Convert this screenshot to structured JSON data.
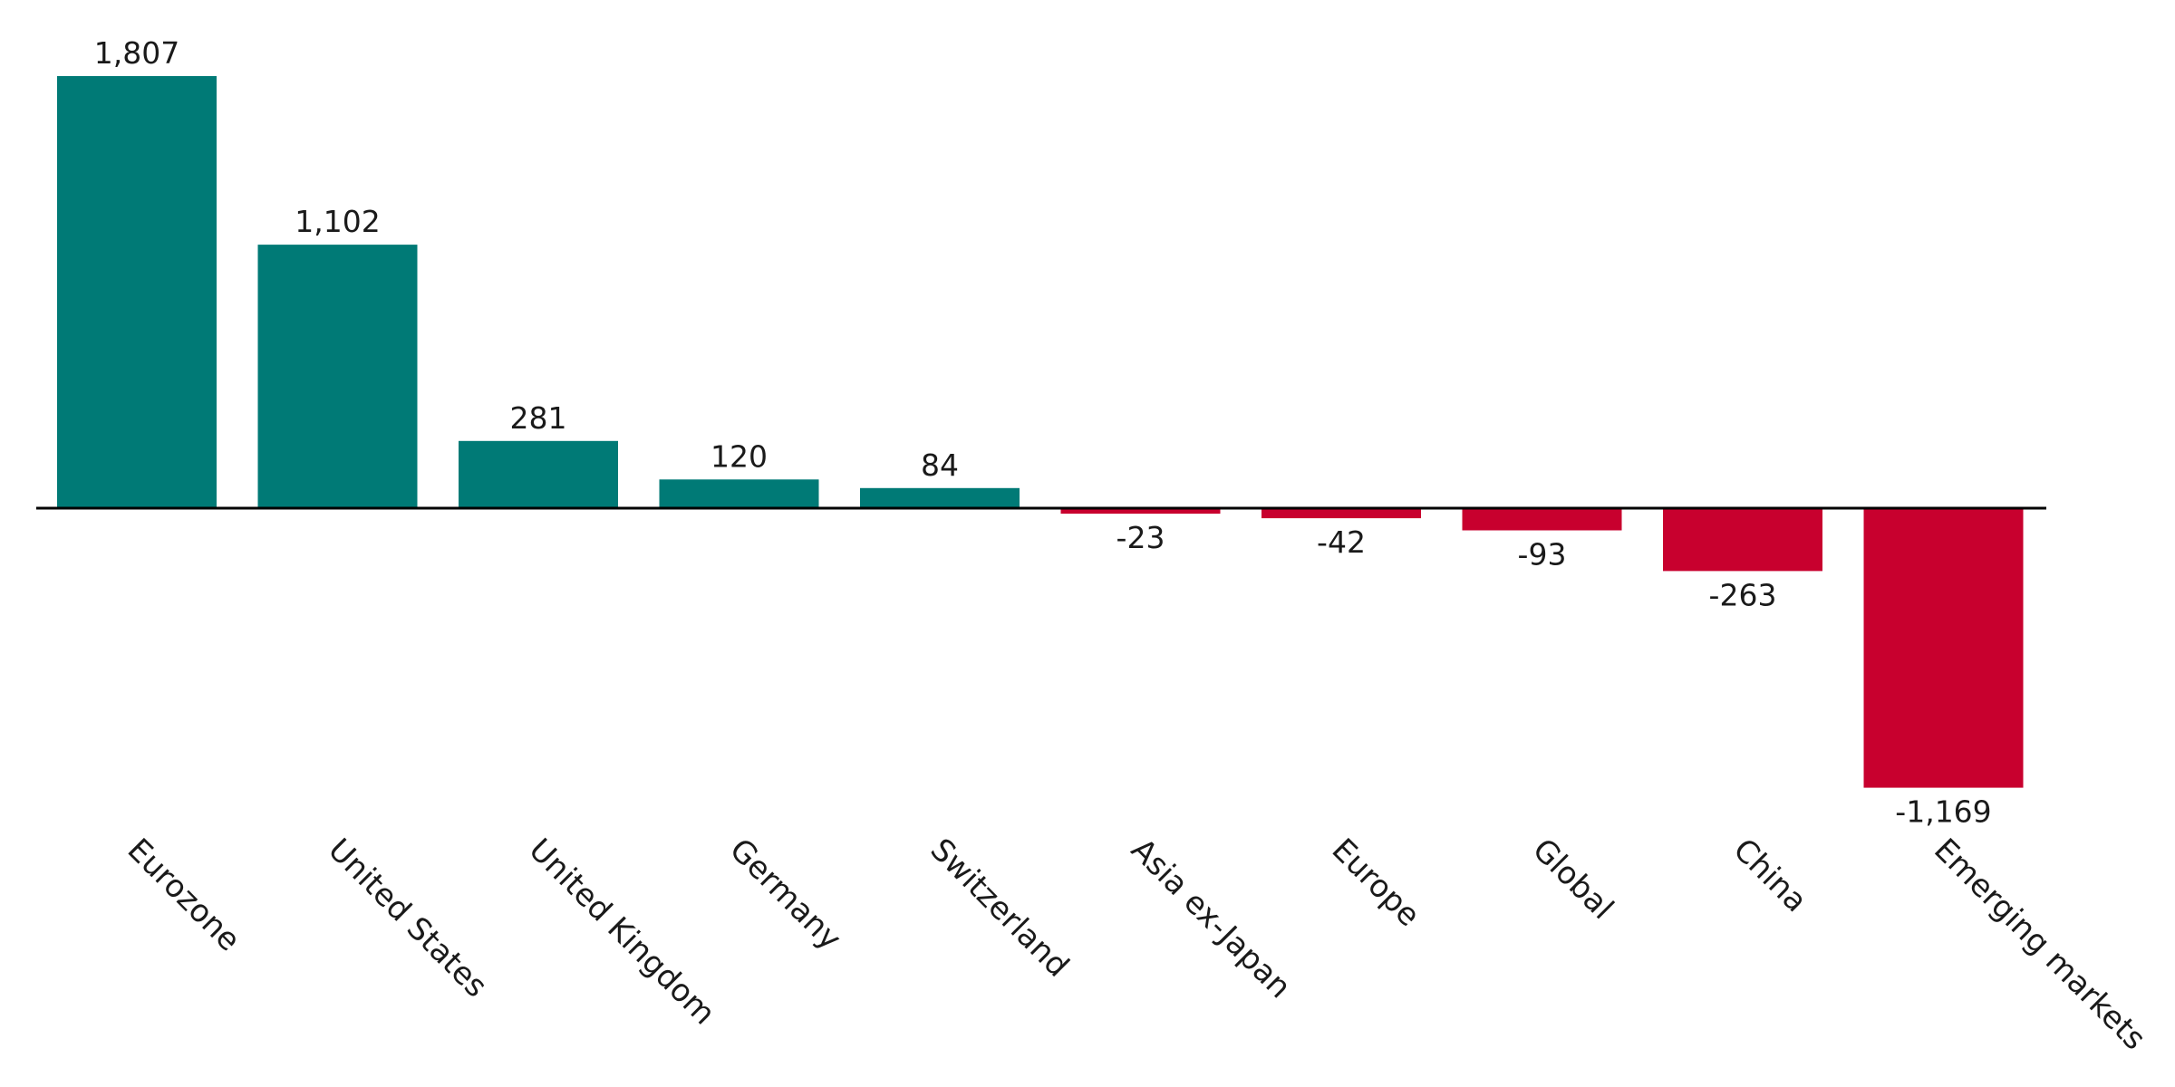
{
  "chart_data": {
    "type": "bar",
    "title": "",
    "xlabel": "",
    "ylabel": "",
    "categories": [
      "Eurozone",
      "United States",
      "United Kingdom",
      "Germany",
      "Switzerland",
      "Asia ex-Japan",
      "Europe",
      "Global",
      "China",
      "Emerging markets"
    ],
    "values": [
      1807,
      1102,
      281,
      120,
      84,
      -23,
      -42,
      -93,
      -263,
      -1169
    ],
    "value_labels": [
      "1,807",
      "1,102",
      "281",
      "120",
      "84",
      "-23",
      "-42",
      "-93",
      "-263",
      "-1,169"
    ],
    "ylim": [
      -1169,
      1807
    ],
    "grid": false,
    "legend": "none",
    "colors": {
      "positive": "#007A76",
      "negative": "#C8002E",
      "axis": "#000000",
      "text": "#1a1a1a"
    }
  }
}
